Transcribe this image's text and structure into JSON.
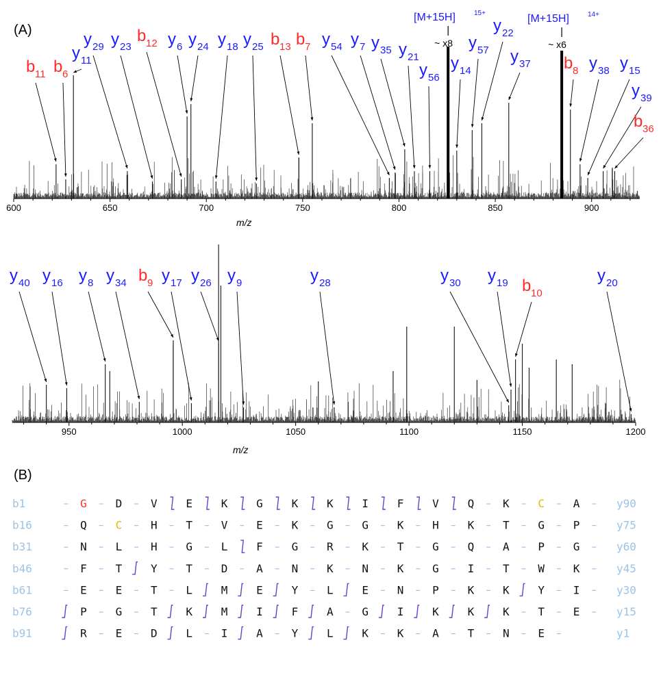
{
  "figure": {
    "panel_a_label": "(A)",
    "panel_b_label": "(B)"
  },
  "colors": {
    "b_ion": "#ff2a2a",
    "y_ion": "#1a1aff",
    "spectrum": "#000000",
    "cys": "#e6b800",
    "start": "#ff2a2a",
    "residue": "#111111",
    "seq_number": "#9cc3e6",
    "cleavage_mark": "#6a3fd0"
  },
  "chart_data": [
    {
      "type": "line",
      "panel": "A-top",
      "xlabel": "m/z",
      "xlim": [
        600,
        925
      ],
      "xticks": [
        600,
        650,
        700,
        750,
        800,
        850,
        900
      ],
      "precursors": [
        {
          "label": "[M+15H]",
          "charge": "15+",
          "mz": 825.5,
          "scale": "~ x8"
        },
        {
          "label": "[M+15H]",
          "charge": "14+",
          "mz": 884.5,
          "scale": "~ x6"
        }
      ],
      "annotations": [
        {
          "ion": "b",
          "n": "11",
          "mz": 622
        },
        {
          "ion": "b",
          "n": "6",
          "mz": 627
        },
        {
          "ion": "y",
          "n": "11",
          "mz": 631
        },
        {
          "ion": "y",
          "n": "29",
          "mz": 659
        },
        {
          "ion": "y",
          "n": "23",
          "mz": 672
        },
        {
          "ion": "b",
          "n": "12",
          "mz": 687
        },
        {
          "ion": "y",
          "n": "6",
          "mz": 690
        },
        {
          "ion": "y",
          "n": "24",
          "mz": 692
        },
        {
          "ion": "y",
          "n": "18",
          "mz": 705
        },
        {
          "ion": "y",
          "n": "25",
          "mz": 726
        },
        {
          "ion": "b",
          "n": "13",
          "mz": 748
        },
        {
          "ion": "b",
          "n": "7",
          "mz": 755
        },
        {
          "ion": "y",
          "n": "54",
          "mz": 795
        },
        {
          "ion": "y",
          "n": "7",
          "mz": 798
        },
        {
          "ion": "y",
          "n": "35",
          "mz": 803
        },
        {
          "ion": "y",
          "n": "21",
          "mz": 808
        },
        {
          "ion": "y",
          "n": "56",
          "mz": 816
        },
        {
          "ion": "y",
          "n": "14",
          "mz": 830
        },
        {
          "ion": "y",
          "n": "57",
          "mz": 838
        },
        {
          "ion": "y",
          "n": "22",
          "mz": 843
        },
        {
          "ion": "y",
          "n": "37",
          "mz": 857
        },
        {
          "ion": "b",
          "n": "8",
          "mz": 889
        },
        {
          "ion": "y",
          "n": "38",
          "mz": 894
        },
        {
          "ion": "y",
          "n": "15",
          "mz": 898
        },
        {
          "ion": "y",
          "n": "39",
          "mz": 906
        },
        {
          "ion": "b",
          "n": "36",
          "mz": 912
        }
      ]
    },
    {
      "type": "line",
      "panel": "A-bottom",
      "xlabel": "m/z",
      "xlim": [
        925,
        1200
      ],
      "xticks": [
        950,
        1000,
        1050,
        1100,
        1150,
        1200
      ],
      "annotations": [
        {
          "ion": "y",
          "n": "40",
          "mz": 940
        },
        {
          "ion": "y",
          "n": "16",
          "mz": 949
        },
        {
          "ion": "y",
          "n": "8",
          "mz": 966
        },
        {
          "ion": "y",
          "n": "34",
          "mz": 981
        },
        {
          "ion": "b",
          "n": "9",
          "mz": 996
        },
        {
          "ion": "y",
          "n": "17",
          "mz": 1004
        },
        {
          "ion": "y",
          "n": "26",
          "mz": 1016
        },
        {
          "ion": "y",
          "n": "9",
          "mz": 1027
        },
        {
          "ion": "y",
          "n": "28",
          "mz": 1067
        },
        {
          "ion": "y",
          "n": "30",
          "mz": 1144
        },
        {
          "ion": "y",
          "n": "19",
          "mz": 1145
        },
        {
          "ion": "b",
          "n": "10",
          "mz": 1147
        },
        {
          "ion": "y",
          "n": "20",
          "mz": 1198
        }
      ]
    }
  ],
  "sequence": {
    "rows": [
      {
        "b": "b1",
        "y": "y90",
        "res": [
          "G",
          "D",
          "V",
          "E",
          "K",
          "G",
          "K",
          "K",
          "I",
          "F",
          "V",
          "Q",
          "K",
          "C",
          "A"
        ],
        "marks": [
          "",
          "",
          "",
          "b",
          "b",
          "b",
          "b",
          "b",
          "b",
          "b",
          "b",
          "b",
          "",
          "",
          ""
        ]
      },
      {
        "b": "b16",
        "y": "y75",
        "res": [
          "Q",
          "C",
          "H",
          "T",
          "V",
          "E",
          "K",
          "G",
          "G",
          "K",
          "H",
          "K",
          "T",
          "G",
          "P"
        ],
        "marks": [
          "",
          "",
          "",
          "",
          "",
          "",
          "",
          "",
          "",
          "",
          "",
          "",
          "",
          "",
          ""
        ]
      },
      {
        "b": "b31",
        "y": "y60",
        "res": [
          "N",
          "L",
          "H",
          "G",
          "L",
          "F",
          "G",
          "R",
          "K",
          "T",
          "G",
          "Q",
          "A",
          "P",
          "G"
        ],
        "marks": [
          "",
          "",
          "",
          "",
          "",
          "b",
          "",
          "",
          "",
          "",
          "",
          "",
          "",
          "",
          ""
        ]
      },
      {
        "b": "b46",
        "y": "y45",
        "res": [
          "F",
          "T",
          "Y",
          "T",
          "D",
          "A",
          "N",
          "K",
          "N",
          "K",
          "G",
          "I",
          "T",
          "W",
          "K"
        ],
        "marks": [
          "",
          "",
          "y",
          "",
          "",
          "",
          "",
          "",
          "",
          "",
          "",
          "",
          "",
          "",
          ""
        ]
      },
      {
        "b": "b61",
        "y": "y30",
        "res": [
          "E",
          "E",
          "T",
          "L",
          "M",
          "E",
          "Y",
          "L",
          "E",
          "N",
          "P",
          "K",
          "K",
          "Y",
          "I"
        ],
        "marks": [
          "",
          "",
          "",
          "",
          "y",
          "y",
          "y",
          "",
          "y",
          "",
          "",
          "",
          "",
          "y",
          ""
        ]
      },
      {
        "b": "b76",
        "y": "y15",
        "res": [
          "P",
          "G",
          "T",
          "K",
          "M",
          "I",
          "F",
          "A",
          "G",
          "I",
          "K",
          "K",
          "K",
          "T",
          "E"
        ],
        "marks": [
          "y",
          "",
          "",
          "y",
          "y",
          "y",
          "y",
          "y",
          "",
          "y",
          "y",
          "y",
          "y",
          "",
          ""
        ]
      },
      {
        "b": "b91",
        "y": "y1",
        "res": [
          "R",
          "E",
          "D",
          "L",
          "I",
          "A",
          "Y",
          "L",
          "K",
          "K",
          "A",
          "T",
          "N",
          "E"
        ],
        "marks": [
          "y",
          "",
          "",
          "y",
          "",
          "y",
          "",
          "y",
          "y",
          "",
          "",
          "",
          "",
          ""
        ]
      }
    ],
    "red_positions": [
      [
        0,
        0
      ]
    ],
    "yellow_positions": [
      [
        0,
        13
      ],
      [
        1,
        1
      ]
    ]
  }
}
